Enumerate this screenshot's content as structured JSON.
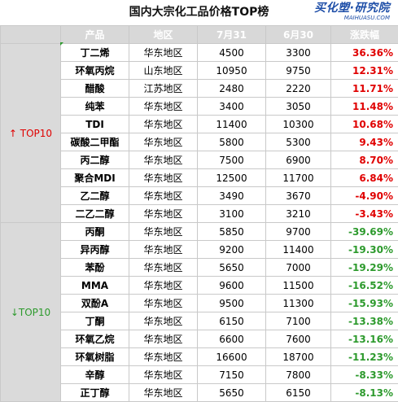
{
  "title": "国内大宗化工品价格TOP榜",
  "logo": {
    "name": "买化塑·研究院",
    "url": "MAIHUASU.COM"
  },
  "headers": [
    "产品",
    "地区",
    "7月31",
    "6月30",
    "涨跌幅"
  ],
  "groups": [
    {
      "label": "↑ TOP10",
      "arrow": "↑",
      "text": " TOP10"
    },
    {
      "label": "↓TOP10",
      "arrow": "↓",
      "text": "TOP10"
    }
  ],
  "rows": [
    {
      "product": "丁二烯",
      "region": "华东地区",
      "jul31": "4500",
      "jun30": "3300",
      "change": "36.36%",
      "trend": "up"
    },
    {
      "product": "环氧丙烷",
      "region": "山东地区",
      "jul31": "10950",
      "jun30": "9750",
      "change": "12.31%",
      "trend": "up"
    },
    {
      "product": "醋酸",
      "region": "江苏地区",
      "jul31": "2480",
      "jun30": "2220",
      "change": "11.71%",
      "trend": "up"
    },
    {
      "product": "纯苯",
      "region": "华东地区",
      "jul31": "3400",
      "jun30": "3050",
      "change": "11.48%",
      "trend": "up"
    },
    {
      "product": "TDI",
      "region": "华东地区",
      "jul31": "11400",
      "jun30": "10300",
      "change": "10.68%",
      "trend": "up"
    },
    {
      "product": "碳酸二甲酯",
      "region": "华东地区",
      "jul31": "5800",
      "jun30": "5300",
      "change": "9.43%",
      "trend": "up"
    },
    {
      "product": "丙二醇",
      "region": "华东地区",
      "jul31": "7500",
      "jun30": "6900",
      "change": "8.70%",
      "trend": "up"
    },
    {
      "product": "聚合MDI",
      "region": "华东地区",
      "jul31": "12500",
      "jun30": "11700",
      "change": "6.84%",
      "trend": "up"
    },
    {
      "product": "乙二醇",
      "region": "华东地区",
      "jul31": "3490",
      "jun30": "3670",
      "change": "-4.90%",
      "trend": "neg"
    },
    {
      "product": "二乙二醇",
      "region": "华东地区",
      "jul31": "3100",
      "jun30": "3210",
      "change": "-3.43%",
      "trend": "neg"
    },
    {
      "product": "丙酮",
      "region": "华东地区",
      "jul31": "5850",
      "jun30": "9700",
      "change": "-39.69%",
      "trend": "down"
    },
    {
      "product": "异丙醇",
      "region": "华东地区",
      "jul31": "9200",
      "jun30": "11400",
      "change": "-19.30%",
      "trend": "down"
    },
    {
      "product": "苯酚",
      "region": "华东地区",
      "jul31": "5650",
      "jun30": "7000",
      "change": "-19.29%",
      "trend": "down"
    },
    {
      "product": "MMA",
      "region": "华东地区",
      "jul31": "9600",
      "jun30": "11500",
      "change": "-16.52%",
      "trend": "down"
    },
    {
      "product": "双酚A",
      "region": "华东地区",
      "jul31": "9500",
      "jun30": "11300",
      "change": "-15.93%",
      "trend": "down"
    },
    {
      "product": "丁酮",
      "region": "华东地区",
      "jul31": "6150",
      "jun30": "7100",
      "change": "-13.38%",
      "trend": "down"
    },
    {
      "product": "环氧乙烷",
      "region": "华东地区",
      "jul31": "6600",
      "jun30": "7600",
      "change": "-13.16%",
      "trend": "down"
    },
    {
      "product": "环氧树脂",
      "region": "华东地区",
      "jul31": "16600",
      "jun30": "18700",
      "change": "-11.23%",
      "trend": "down"
    },
    {
      "product": "辛醇",
      "region": "华东地区",
      "jul31": "7150",
      "jun30": "7800",
      "change": "-8.33%",
      "trend": "down"
    },
    {
      "product": "正丁醇",
      "region": "华东地区",
      "jul31": "5650",
      "jun30": "6150",
      "change": "-8.13%",
      "trend": "down"
    }
  ]
}
